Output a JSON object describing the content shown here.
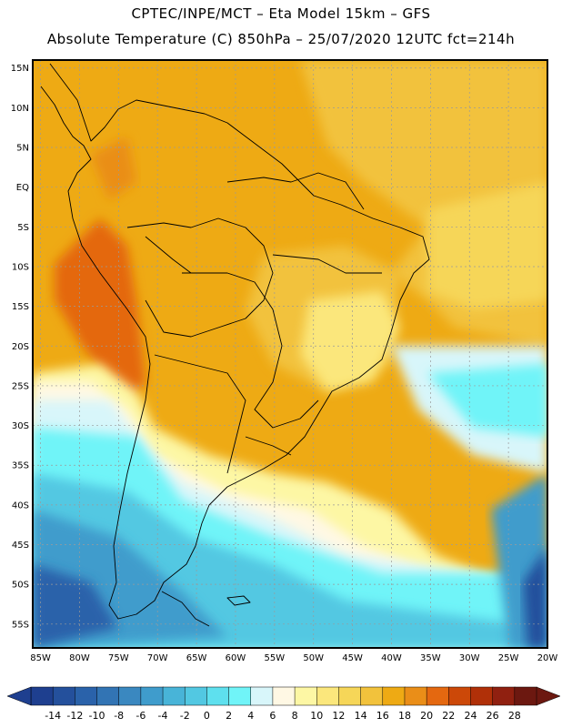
{
  "header": {
    "line1": "CPTEC/INPE/MCT –  Eta Model 15km – GFS",
    "line2": "Absolute Temperature (C) 850hPa – 25/07/2020 12UTC fct=214h"
  },
  "map": {
    "region": "South America",
    "field": "Absolute Temperature (C) 850hPa",
    "lat_range": [
      -58,
      16
    ],
    "lon_range": [
      -86,
      -20
    ],
    "lat_ticks": [
      "15N",
      "10N",
      "5N",
      "EQ",
      "5S",
      "10S",
      "15S",
      "20S",
      "25S",
      "30S",
      "35S",
      "40S",
      "45S",
      "50S",
      "55S"
    ],
    "lon_ticks": [
      "85W",
      "80W",
      "75W",
      "70W",
      "65W",
      "60W",
      "55W",
      "50W",
      "45W",
      "40W",
      "35W",
      "30W",
      "25W",
      "20W"
    ],
    "gridlines": true
  },
  "colorbar": {
    "labels": [
      "-14",
      "-12",
      "-10",
      "-8",
      "-6",
      "-4",
      "-2",
      "0",
      "2",
      "4",
      "6",
      "8",
      "10",
      "12",
      "14",
      "16",
      "18",
      "20",
      "22",
      "24",
      "26",
      "28"
    ],
    "colors": [
      "#1e3f8f",
      "#24509c",
      "#2a62aa",
      "#3274b4",
      "#3a88c0",
      "#3f9ccc",
      "#48b4d8",
      "#52c8e2",
      "#5ee0ee",
      "#70f4f8",
      "#d8f6fa",
      "#fff8e4",
      "#fdf7a4",
      "#fbe77c",
      "#f6d658",
      "#f2c23c",
      "#eeaa14",
      "#ea8e18",
      "#e46810",
      "#cc4808",
      "#b03008",
      "#902010",
      "#6c1810"
    ]
  }
}
